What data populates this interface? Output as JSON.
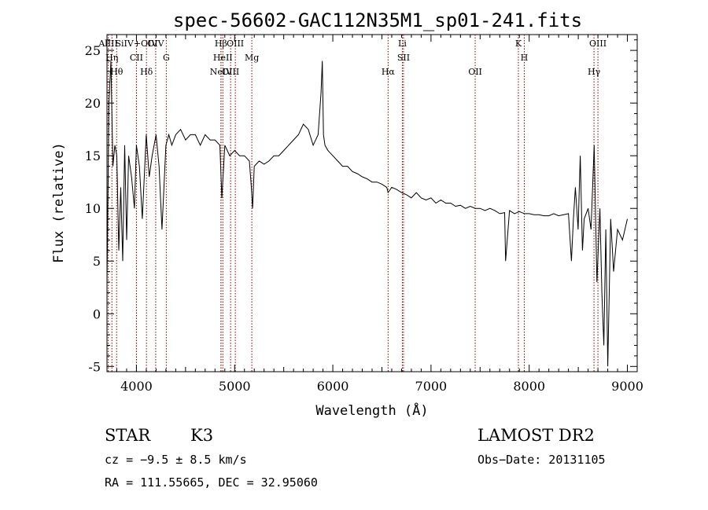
{
  "chart_data": {
    "type": "line",
    "title": "spec-56602-GAC112N35M1_sp01-241.fits",
    "xlabel": "Wavelength (Å)",
    "ylabel": "Flux (relative)",
    "xlim": [
      3700,
      9100
    ],
    "ylim": [
      -5.5,
      26.5
    ],
    "xticks": [
      4000,
      5000,
      6000,
      7000,
      8000,
      9000
    ],
    "yticks": [
      -5,
      0,
      5,
      10,
      15,
      20,
      25
    ],
    "grid": false,
    "series": [
      {
        "color": "#000000",
        "x": [
          3700,
          3720,
          3740,
          3760,
          3780,
          3800,
          3820,
          3840,
          3860,
          3880,
          3900,
          3920,
          3950,
          3980,
          4000,
          4030,
          4060,
          4100,
          4130,
          4160,
          4200,
          4230,
          4260,
          4300,
          4330,
          4360,
          4400,
          4450,
          4500,
          4550,
          4600,
          4650,
          4700,
          4750,
          4800,
          4850,
          4870,
          4900,
          4950,
          5000,
          5050,
          5100,
          5150,
          5170,
          5183,
          5200,
          5250,
          5300,
          5350,
          5400,
          5450,
          5500,
          5550,
          5600,
          5650,
          5700,
          5750,
          5800,
          5850,
          5880,
          5893,
          5905,
          5920,
          5950,
          6000,
          6050,
          6100,
          6150,
          6200,
          6250,
          6300,
          6350,
          6400,
          6450,
          6500,
          6550,
          6563,
          6600,
          6650,
          6700,
          6750,
          6800,
          6850,
          6900,
          6950,
          7000,
          7050,
          7100,
          7150,
          7200,
          7250,
          7300,
          7350,
          7400,
          7450,
          7500,
          7550,
          7600,
          7650,
          7700,
          7750,
          7760,
          7800,
          7850,
          7900,
          7950,
          8000,
          8050,
          8100,
          8150,
          8200,
          8250,
          8300,
          8350,
          8400,
          8430,
          8450,
          8470,
          8498,
          8520,
          8542,
          8560,
          8600,
          8630,
          8662,
          8690,
          8720,
          8740,
          8760,
          8780,
          8800,
          8830,
          8860,
          8900,
          8950,
          9000
        ],
        "y": [
          3,
          20,
          24,
          14,
          16,
          15,
          6,
          12,
          5,
          16,
          7,
          15,
          13,
          10,
          16,
          14,
          9,
          17,
          13,
          15,
          17,
          14,
          8,
          16,
          17,
          16,
          17,
          17.5,
          16.5,
          17,
          17,
          16,
          17,
          16.5,
          16.5,
          16,
          11,
          16,
          15,
          15.5,
          15,
          15,
          14.5,
          12,
          10,
          14,
          14.5,
          14.2,
          14.5,
          15,
          15,
          15.5,
          16,
          16.5,
          17,
          18,
          17.5,
          16,
          17,
          21,
          24,
          17,
          16,
          15.5,
          15,
          14.5,
          14,
          14,
          13.5,
          13.3,
          13,
          12.8,
          12.5,
          12.5,
          12.3,
          12,
          11.5,
          12,
          11.8,
          11.5,
          11.3,
          11,
          11.5,
          11,
          10.8,
          11,
          10.5,
          10.8,
          10.5,
          10.5,
          10.2,
          10.3,
          10,
          10.2,
          10,
          10,
          9.8,
          10,
          9.8,
          9.5,
          9.6,
          5,
          9.8,
          9.5,
          9.7,
          9.5,
          9.5,
          9.4,
          9.4,
          9.3,
          9.3,
          9.5,
          9.3,
          9.4,
          9.5,
          5,
          9,
          12,
          8,
          15,
          6,
          9,
          10,
          8,
          16,
          3,
          10,
          2,
          -3,
          8,
          -5,
          9,
          4,
          8,
          7,
          9
        ]
      }
    ],
    "lines": [
      {
        "label": "AlIII",
        "x": 3713
      },
      {
        "label": "Hη",
        "x": 3750
      },
      {
        "label": "Hθ",
        "x": 3798
      },
      {
        "label": "SiIV+OIV",
        "x": 4000
      },
      {
        "label": "CII",
        "x": 4000
      },
      {
        "label": "Hδ",
        "x": 4102
      },
      {
        "label": "OIV",
        "x": 4196
      },
      {
        "label": "G",
        "x": 4304
      },
      {
        "label": "NeIV",
        "x": 4861
      },
      {
        "label": "Hβ",
        "x": 4861
      },
      {
        "label": "HeII",
        "x": 4880
      },
      {
        "label": "OIII",
        "x": 4959
      },
      {
        "label": "OIII",
        "x": 5007
      },
      {
        "label": "Mg",
        "x": 5175
      },
      {
        "label": "Hα",
        "x": 6563
      },
      {
        "label": "Li",
        "x": 6708
      },
      {
        "label": "SII",
        "x": 6720
      },
      {
        "label": "OII",
        "x": 7450
      },
      {
        "label": "K",
        "x": 7890
      },
      {
        "label": "H",
        "x": 7950
      },
      {
        "label": "Hγ",
        "x": 8660
      },
      {
        "label": "OIII",
        "x": 8700
      }
    ]
  },
  "footer": {
    "class_label": "STAR",
    "subclass": "K3",
    "survey": "LAMOST DR2",
    "cz": "cz = −9.5 ± 8.5 km/s",
    "obs_date": "Obs−Date: 20131105",
    "radec": "RA = 111.55665, DEC =  32.95060"
  }
}
